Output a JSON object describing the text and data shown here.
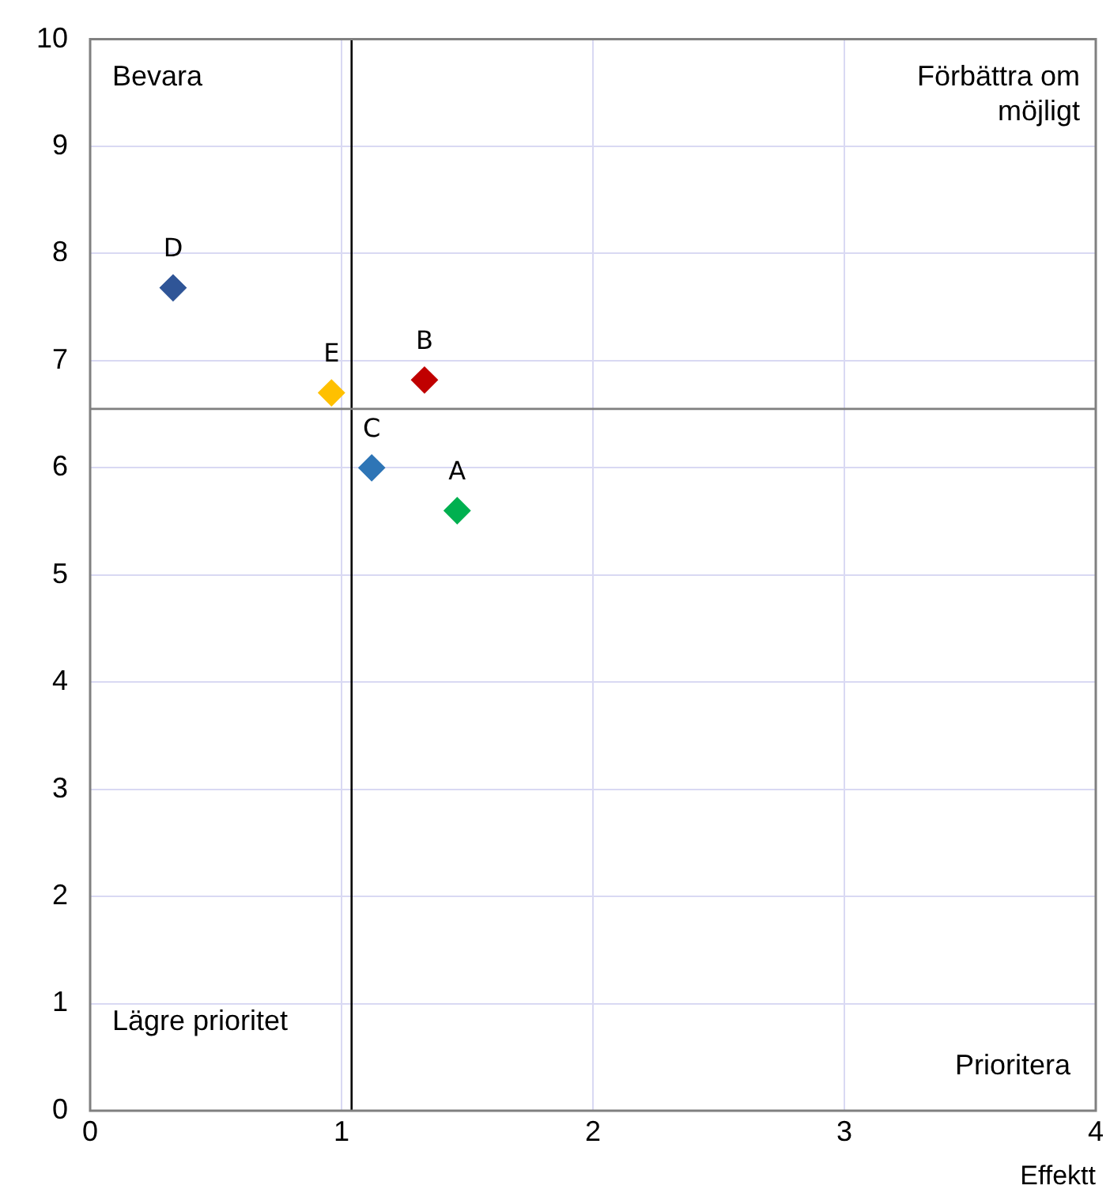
{
  "chart_data": {
    "type": "scatter",
    "xlabel": "Effektt",
    "xlim": [
      0,
      4
    ],
    "xticks": [
      0,
      1,
      2,
      3,
      4
    ],
    "ylim": [
      0,
      10
    ],
    "yticks": [
      0,
      1,
      2,
      3,
      4,
      5,
      6,
      7,
      8,
      9,
      10
    ],
    "grid": true,
    "legend": false,
    "marker": "diamond",
    "series": [
      {
        "name": "A",
        "color": "#00b050",
        "x": [
          1.46
        ],
        "values": [
          5.6
        ]
      },
      {
        "name": "B",
        "color": "#c00000",
        "x": [
          1.33
        ],
        "values": [
          6.82
        ]
      },
      {
        "name": "C",
        "color": "#2e75b6",
        "x": [
          1.12
        ],
        "values": [
          6.0
        ]
      },
      {
        "name": "D",
        "color": "#2f5597",
        "x": [
          0.33
        ],
        "values": [
          7.68
        ]
      },
      {
        "name": "E",
        "color": "#ffc000",
        "x": [
          0.96
        ],
        "values": [
          6.7
        ]
      }
    ],
    "ref_lines": [
      {
        "axis": "x",
        "value": 1.04,
        "color": "#000000"
      },
      {
        "axis": "y",
        "value": 6.55,
        "color": "#7f7f7f"
      }
    ],
    "annotations": [
      "Bevara",
      "Förbättra om möjligt",
      "Lägre prioritet",
      "Prioritera"
    ]
  }
}
